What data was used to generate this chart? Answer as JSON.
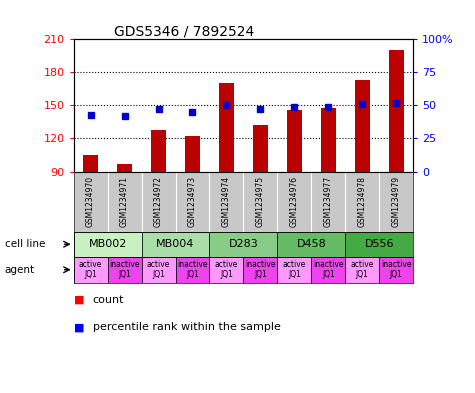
{
  "title": "GDS5346 / 7892524",
  "samples": [
    "GSM1234970",
    "GSM1234971",
    "GSM1234972",
    "GSM1234973",
    "GSM1234974",
    "GSM1234975",
    "GSM1234976",
    "GSM1234977",
    "GSM1234978",
    "GSM1234979"
  ],
  "bar_values": [
    105,
    97,
    128,
    122,
    170,
    132,
    146,
    148,
    173,
    200
  ],
  "percentile_values": [
    43,
    42,
    47,
    45,
    50,
    47,
    49,
    49,
    51,
    52
  ],
  "ymin": 90,
  "ymax": 210,
  "yticks": [
    90,
    120,
    150,
    180,
    210
  ],
  "y2min": 0,
  "y2max": 100,
  "y2ticks": [
    0,
    25,
    50,
    75,
    100
  ],
  "y2ticklabels": [
    "0",
    "25",
    "50",
    "75",
    "100%"
  ],
  "bar_color": "#BB0000",
  "marker_color": "#0000CC",
  "cell_line_groups": [
    {
      "name": "MB002",
      "start": 0,
      "end": 1,
      "color": "#C8F0C0"
    },
    {
      "name": "MB004",
      "start": 2,
      "end": 3,
      "color": "#AADEA8"
    },
    {
      "name": "D283",
      "start": 4,
      "end": 5,
      "color": "#88CC88"
    },
    {
      "name": "D458",
      "start": 6,
      "end": 7,
      "color": "#66BB66"
    },
    {
      "name": "D556",
      "start": 8,
      "end": 9,
      "color": "#44AA44"
    }
  ],
  "agent_color_active": "#FF99FF",
  "agent_color_inactive": "#EE44EE",
  "background_color": "#FFFFFF",
  "sample_col_color": "#C8C8C8",
  "grid_dotted_color": "#555555",
  "left_label_color": "#000000",
  "title_fontsize": 10,
  "axis_fontsize": 8,
  "sample_fontsize": 5.5,
  "cell_fontsize": 8,
  "agent_fontsize": 5.5,
  "legend_fontsize": 8
}
